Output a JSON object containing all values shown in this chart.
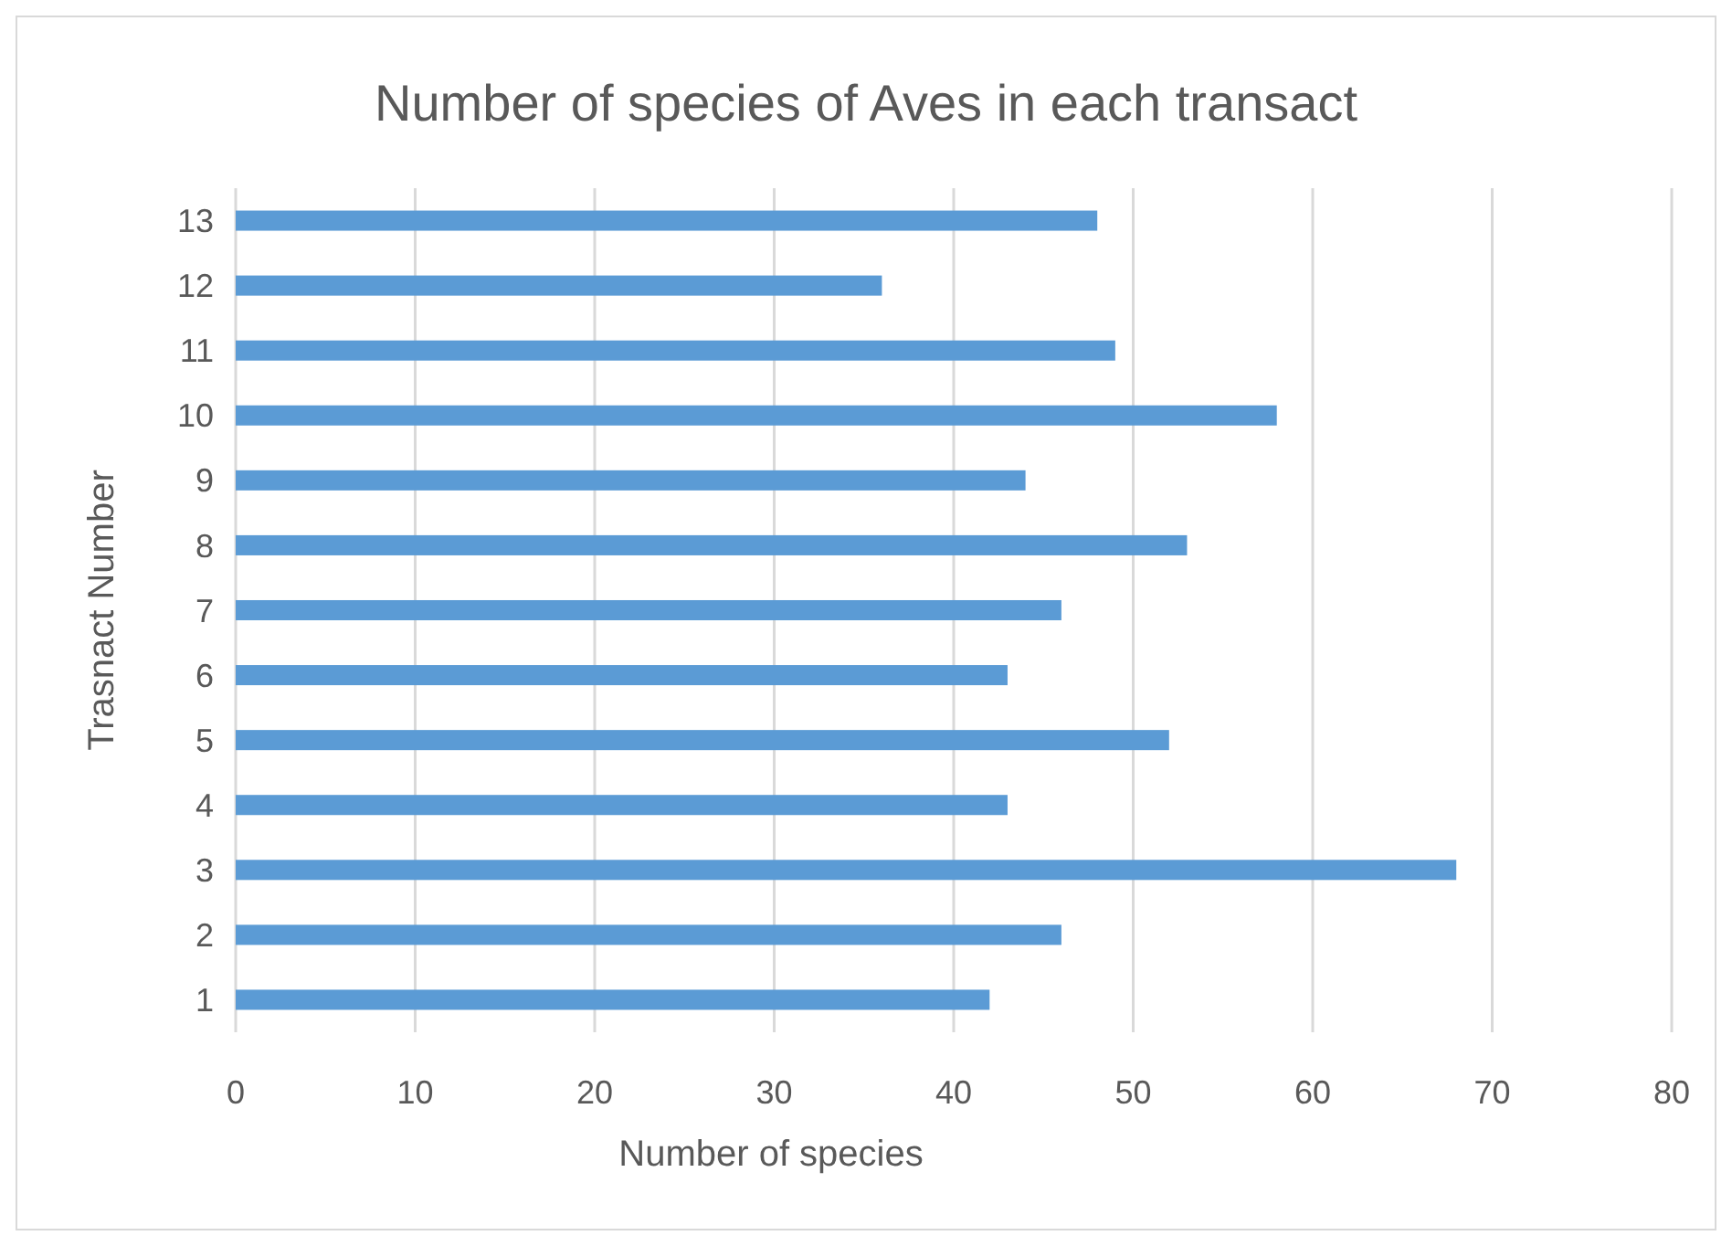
{
  "chart_data": {
    "type": "bar",
    "orientation": "horizontal",
    "title": "Number of species of Aves in each transact",
    "xlabel": "Number of species",
    "ylabel": "Trasnact Number",
    "categories": [
      "13",
      "12",
      "11",
      "10",
      "9",
      "8",
      "7",
      "6",
      "5",
      "4",
      "3",
      "2",
      "1"
    ],
    "values": [
      48,
      36,
      49,
      58,
      44,
      53,
      46,
      43,
      52,
      43,
      68,
      46,
      42
    ],
    "color": "#5b9bd5",
    "xlim": [
      0,
      80
    ],
    "xticks": [
      0,
      10,
      20,
      30,
      40,
      50,
      60,
      70,
      80
    ],
    "grid": "x"
  }
}
